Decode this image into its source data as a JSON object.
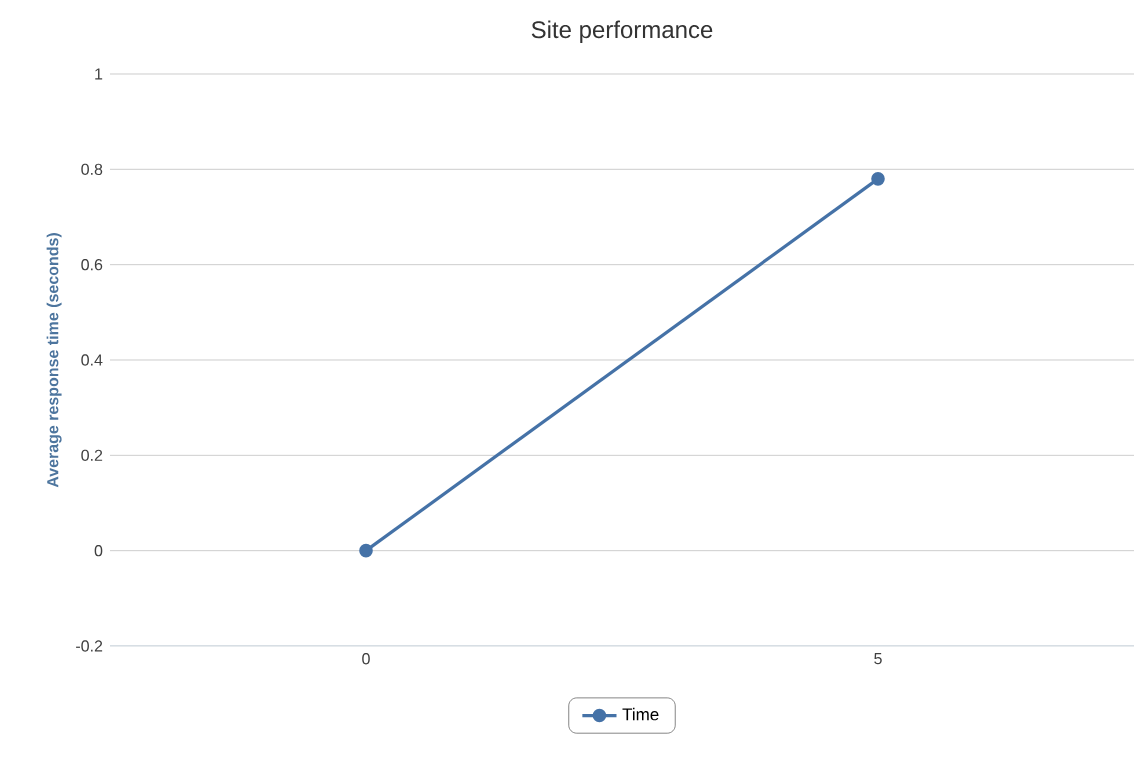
{
  "chart_data": {
    "type": "line",
    "title": "Site performance",
    "ylabel": "Average response time (seconds)",
    "categories": [
      "0",
      "5"
    ],
    "series": [
      {
        "name": "Time",
        "color": "#4572a7",
        "values": [
          0,
          0.78
        ]
      }
    ],
    "ylim": [
      -0.2,
      1
    ],
    "yticks": [
      -0.2,
      0,
      0.2,
      0.4,
      0.6,
      0.8,
      1
    ],
    "grid": "y",
    "legend": "bottom",
    "marker": "circle",
    "line_style": "solid"
  }
}
